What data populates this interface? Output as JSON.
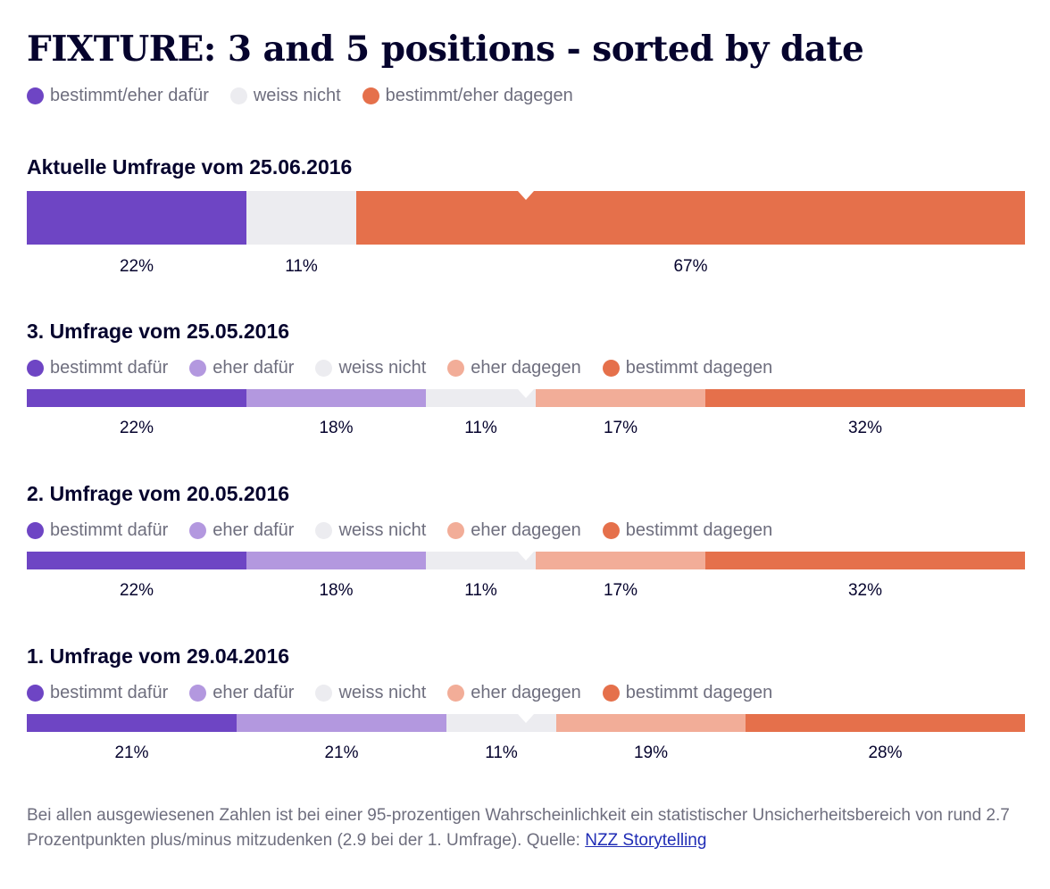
{
  "title": "FIXTURE: 3 and 5 positions - sorted by date",
  "legend3": [
    {
      "label": "bestimmt/eher dafür",
      "color": "#6e45c4"
    },
    {
      "label": "weiss nicht",
      "color": "#ececf0"
    },
    {
      "label": "bestimmt/eher dagegen",
      "color": "#e5704b"
    }
  ],
  "legend5": [
    {
      "label": "bestimmt dafür",
      "color": "#6e45c4"
    },
    {
      "label": "eher dafür",
      "color": "#b398df"
    },
    {
      "label": "weiss nicht",
      "color": "#ececf0"
    },
    {
      "label": "eher dagegen",
      "color": "#f2ad98"
    },
    {
      "label": "bestimmt dagegen",
      "color": "#e5704b"
    }
  ],
  "chart_data": [
    {
      "type": "bar",
      "stacked": true,
      "orientation": "horizontal",
      "title": "Aktuelle Umfrage vom 25.06.2016",
      "categories": [
        "bestimmt/eher dafür",
        "weiss nicht",
        "bestimmt/eher dagegen"
      ],
      "values": [
        22,
        11,
        67
      ],
      "labels": [
        "22%",
        "11%",
        "67%"
      ],
      "colors": [
        "#6e45c4",
        "#ececf0",
        "#e5704b"
      ],
      "marker": 50
    },
    {
      "type": "bar",
      "stacked": true,
      "orientation": "horizontal",
      "title": "3. Umfrage vom 25.05.2016",
      "categories": [
        "bestimmt dafür",
        "eher dafür",
        "weiss nicht",
        "eher dagegen",
        "bestimmt dagegen"
      ],
      "values": [
        22,
        18,
        11,
        17,
        32
      ],
      "labels": [
        "22%",
        "18%",
        "11%",
        "17%",
        "32%"
      ],
      "colors": [
        "#6e45c4",
        "#b398df",
        "#ececf0",
        "#f2ad98",
        "#e5704b"
      ],
      "marker": 50
    },
    {
      "type": "bar",
      "stacked": true,
      "orientation": "horizontal",
      "title": "2. Umfrage vom 20.05.2016",
      "categories": [
        "bestimmt dafür",
        "eher dafür",
        "weiss nicht",
        "eher dagegen",
        "bestimmt dagegen"
      ],
      "values": [
        22,
        18,
        11,
        17,
        32
      ],
      "labels": [
        "22%",
        "18%",
        "11%",
        "17%",
        "32%"
      ],
      "colors": [
        "#6e45c4",
        "#b398df",
        "#ececf0",
        "#f2ad98",
        "#e5704b"
      ],
      "marker": 50
    },
    {
      "type": "bar",
      "stacked": true,
      "orientation": "horizontal",
      "title": "1. Umfrage vom 29.04.2016",
      "categories": [
        "bestimmt dafür",
        "eher dafür",
        "weiss nicht",
        "eher dagegen",
        "bestimmt dagegen"
      ],
      "values": [
        21,
        21,
        11,
        19,
        28
      ],
      "labels": [
        "21%",
        "21%",
        "11%",
        "19%",
        "28%"
      ],
      "colors": [
        "#6e45c4",
        "#b398df",
        "#ececf0",
        "#f2ad98",
        "#e5704b"
      ],
      "marker": 50
    }
  ],
  "footer": {
    "text": "Bei allen ausgewiesenen Zahlen ist bei einer 95-prozentigen Wahrscheinlichkeit ein statistischer Unsicherheitsbereich von rund 2.7 Prozentpunkten plus/minus mitzudenken (2.9 bei der 1. Umfrage). Quelle: ",
    "link": "NZZ Storytelling"
  }
}
